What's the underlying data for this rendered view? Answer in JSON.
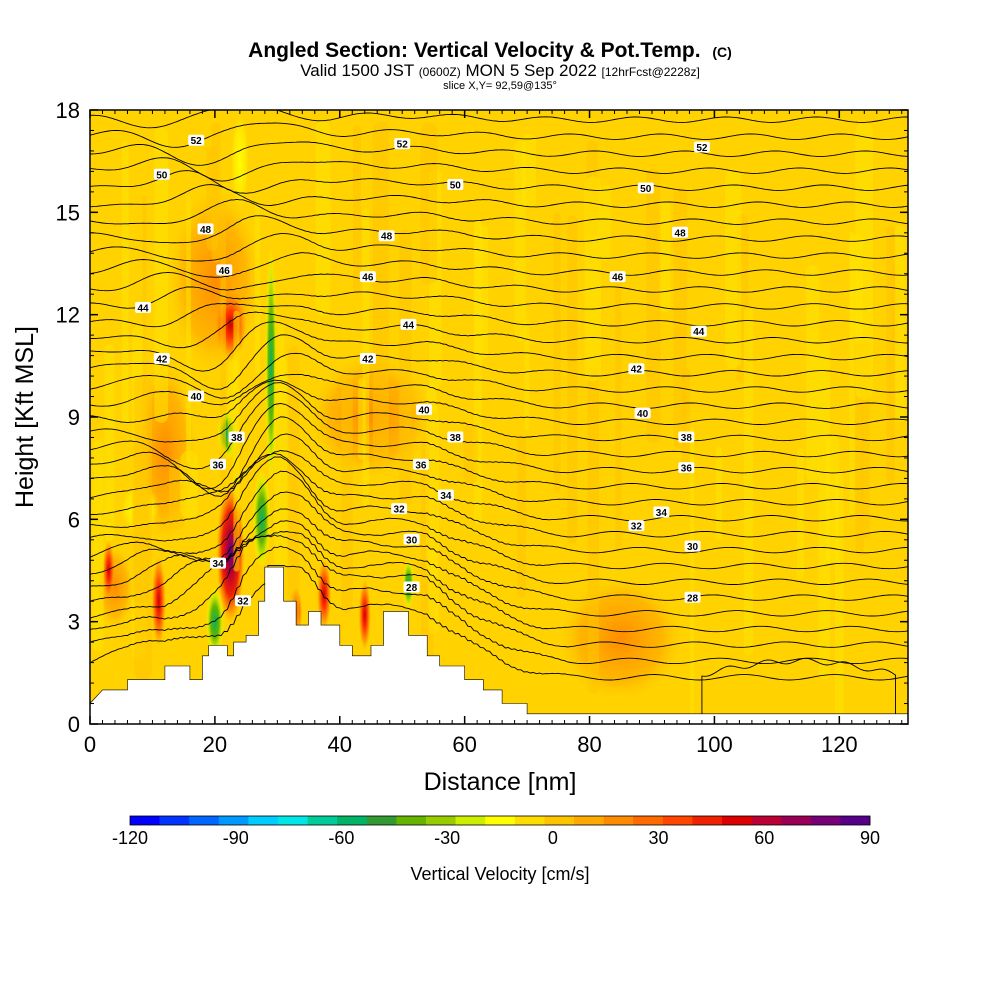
{
  "title": {
    "main": "Angled Section: Vertical Velocity & Pot.Temp.",
    "main_suffix": "(C)",
    "line2_a": "Valid 1500 JST",
    "line2_b": "(0600Z)",
    "line2_c": "MON 5 Sep 2022",
    "line2_d": "[12hrFcst@2228z]",
    "line3": "slice X,Y= 92,59@135°"
  },
  "chart_data": {
    "type": "heatmap",
    "xlabel": "Distance [nm]",
    "ylabel": "Height [Kft MSL]",
    "xlim": [
      0,
      131
    ],
    "ylim": [
      0,
      18
    ],
    "x_ticks": [
      0,
      20,
      40,
      60,
      80,
      100,
      120
    ],
    "y_ticks": [
      0,
      3,
      6,
      9,
      12,
      15,
      18
    ],
    "colorbar": {
      "label": "Vertical Velocity [cm/s]",
      "range": [
        -120,
        90
      ],
      "ticks": [
        -120,
        -90,
        -60,
        -30,
        0,
        30,
        60,
        90
      ],
      "colors": [
        "#0000ff",
        "#0033ff",
        "#0066ff",
        "#0099ff",
        "#00ccff",
        "#00e5e5",
        "#00cc99",
        "#00b366",
        "#339933",
        "#66b300",
        "#99cc00",
        "#ccee00",
        "#ffff00",
        "#ffdd00",
        "#ffc400",
        "#ffaa00",
        "#ff8c00",
        "#ff6a00",
        "#ff4500",
        "#ee2200",
        "#dd0000",
        "#bb0033",
        "#990055",
        "#770077",
        "#550088"
      ]
    },
    "terrain": [
      [
        0,
        0.6
      ],
      [
        2,
        1.0
      ],
      [
        6,
        1.0
      ],
      [
        6,
        1.3
      ],
      [
        12,
        1.3
      ],
      [
        12,
        1.7
      ],
      [
        16,
        1.7
      ],
      [
        16,
        1.3
      ],
      [
        18,
        1.3
      ],
      [
        18,
        2.0
      ],
      [
        19,
        2.0
      ],
      [
        19,
        2.3
      ],
      [
        22,
        2.3
      ],
      [
        22,
        2.0
      ],
      [
        23,
        2.0
      ],
      [
        23,
        2.4
      ],
      [
        25,
        2.4
      ],
      [
        25,
        2.6
      ],
      [
        27,
        2.6
      ],
      [
        27,
        3.6
      ],
      [
        28,
        3.6
      ],
      [
        28,
        4.6
      ],
      [
        31,
        4.6
      ],
      [
        31,
        3.6
      ],
      [
        33,
        3.6
      ],
      [
        33,
        2.9
      ],
      [
        35,
        2.9
      ],
      [
        35,
        3.3
      ],
      [
        37,
        3.3
      ],
      [
        37,
        2.9
      ],
      [
        40,
        2.9
      ],
      [
        40,
        2.3
      ],
      [
        42,
        2.3
      ],
      [
        42,
        2.0
      ],
      [
        45,
        2.0
      ],
      [
        45,
        2.3
      ],
      [
        47,
        2.3
      ],
      [
        47,
        3.3
      ],
      [
        51,
        3.3
      ],
      [
        51,
        2.6
      ],
      [
        54,
        2.6
      ],
      [
        54,
        2.0
      ],
      [
        56,
        2.0
      ],
      [
        56,
        1.7
      ],
      [
        60,
        1.7
      ],
      [
        60,
        1.3
      ],
      [
        63,
        1.3
      ],
      [
        63,
        1.0
      ],
      [
        66,
        1.0
      ],
      [
        66,
        0.6
      ],
      [
        70,
        0.6
      ],
      [
        70,
        0.3
      ],
      [
        131,
        0.3
      ]
    ],
    "theta_labels": [
      {
        "x": 17,
        "z": 17.1,
        "t": "52"
      },
      {
        "x": 50,
        "z": 17.0,
        "t": "52"
      },
      {
        "x": 98,
        "z": 16.9,
        "t": "52"
      },
      {
        "x": 11.5,
        "z": 16.1,
        "t": "50"
      },
      {
        "x": 58.5,
        "z": 15.8,
        "t": "50"
      },
      {
        "x": 89,
        "z": 15.7,
        "t": "50"
      },
      {
        "x": 18.5,
        "z": 14.5,
        "t": "48"
      },
      {
        "x": 47.5,
        "z": 14.3,
        "t": "48"
      },
      {
        "x": 94.5,
        "z": 14.4,
        "t": "48"
      },
      {
        "x": 21.5,
        "z": 13.3,
        "t": "46"
      },
      {
        "x": 44.5,
        "z": 13.1,
        "t": "46"
      },
      {
        "x": 84.5,
        "z": 13.1,
        "t": "46"
      },
      {
        "x": 8.5,
        "z": 12.2,
        "t": "44"
      },
      {
        "x": 51,
        "z": 11.7,
        "t": "44"
      },
      {
        "x": 97.5,
        "z": 11.5,
        "t": "44"
      },
      {
        "x": 11.5,
        "z": 10.7,
        "t": "42"
      },
      {
        "x": 44.5,
        "z": 10.7,
        "t": "42"
      },
      {
        "x": 87.5,
        "z": 10.4,
        "t": "42"
      },
      {
        "x": 17,
        "z": 9.6,
        "t": "40"
      },
      {
        "x": 53.5,
        "z": 9.2,
        "t": "40"
      },
      {
        "x": 88.5,
        "z": 9.1,
        "t": "40"
      },
      {
        "x": 23.5,
        "z": 8.4,
        "t": "38"
      },
      {
        "x": 58.5,
        "z": 8.4,
        "t": "38"
      },
      {
        "x": 95.5,
        "z": 8.4,
        "t": "38"
      },
      {
        "x": 20.5,
        "z": 7.6,
        "t": "36"
      },
      {
        "x": 53,
        "z": 7.6,
        "t": "36"
      },
      {
        "x": 95.5,
        "z": 7.5,
        "t": "36"
      },
      {
        "x": 57,
        "z": 6.7,
        "t": "34"
      },
      {
        "x": 91.5,
        "z": 6.2,
        "t": "34"
      },
      {
        "x": 20.5,
        "z": 4.7,
        "t": "34"
      },
      {
        "x": 49.5,
        "z": 6.3,
        "t": "32"
      },
      {
        "x": 87.5,
        "z": 5.8,
        "t": "32"
      },
      {
        "x": 24.5,
        "z": 3.6,
        "t": "32"
      },
      {
        "x": 51.5,
        "z": 5.4,
        "t": "30"
      },
      {
        "x": 96.5,
        "z": 5.2,
        "t": "30"
      },
      {
        "x": 51.5,
        "z": 4.0,
        "t": "28"
      },
      {
        "x": 96.5,
        "z": 3.7,
        "t": "28"
      }
    ]
  }
}
